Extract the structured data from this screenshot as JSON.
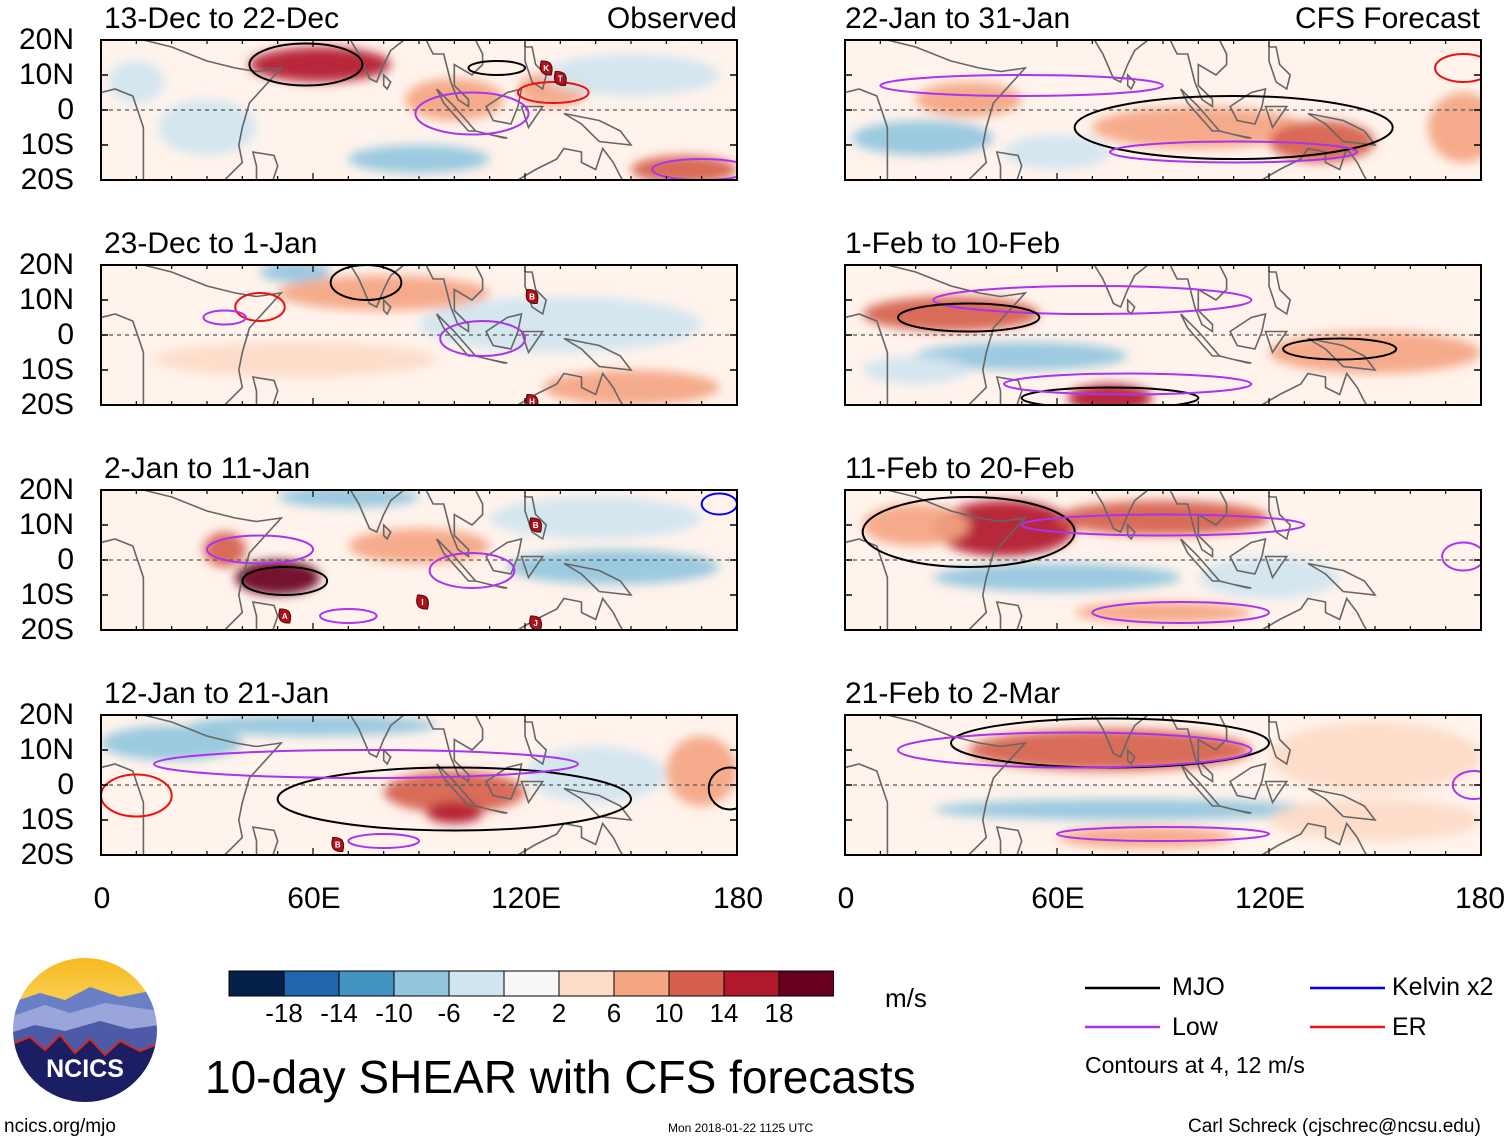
{
  "chart_data": {
    "type": "heatmap",
    "title": "10-day SHEAR with CFS forecasts",
    "variable": "vertical wind shear anomaly",
    "units": "m/s",
    "x_axis": {
      "ticks": [
        "0",
        "60E",
        "120E",
        "180"
      ],
      "range": [
        0,
        180
      ]
    },
    "y_axis": {
      "ticks": [
        "20N",
        "10N",
        "0",
        "10S",
        "20S"
      ],
      "range": [
        -20,
        20
      ]
    },
    "column_labels": {
      "observed": "Observed",
      "forecast": "CFS Forecast"
    },
    "panels": [
      {
        "id": "p1",
        "title": "13-Dec to 22-Dec",
        "source": "Observed",
        "col": 0,
        "row": 0,
        "blobs": [
          {
            "lon": 62,
            "lat": 13,
            "rx": 20,
            "ry": 5,
            "v": 16
          },
          {
            "lon": 100,
            "lat": 3,
            "rx": 14,
            "ry": 6,
            "v": 8
          },
          {
            "lon": 128,
            "lat": 6,
            "rx": 10,
            "ry": 5,
            "v": 9
          },
          {
            "lon": 165,
            "lat": -17,
            "rx": 15,
            "ry": 4,
            "v": 10
          },
          {
            "lon": 30,
            "lat": -5,
            "rx": 14,
            "ry": 8,
            "v": -6
          },
          {
            "lon": 90,
            "lat": -14,
            "rx": 20,
            "ry": 4,
            "v": -7
          },
          {
            "lon": 10,
            "lat": 8,
            "rx": 8,
            "ry": 6,
            "v": -5
          },
          {
            "lon": 150,
            "lat": 10,
            "rx": 25,
            "ry": 6,
            "v": -4
          }
        ],
        "contours": [
          {
            "type": "MJO",
            "lon": 58,
            "lat": 13,
            "rx": 16,
            "ry": 6
          },
          {
            "type": "MJO",
            "lon": 112,
            "lat": 12,
            "rx": 8,
            "ry": 2
          },
          {
            "type": "Low",
            "lon": 105,
            "lat": -1,
            "rx": 16,
            "ry": 6
          },
          {
            "type": "ER",
            "lon": 128,
            "lat": 5,
            "rx": 10,
            "ry": 3
          },
          {
            "type": "Low",
            "lon": 170,
            "lat": -17,
            "rx": 14,
            "ry": 3
          }
        ],
        "cyclones": [
          {
            "lon": 126,
            "lat": 12,
            "label": "K"
          },
          {
            "lon": 130,
            "lat": 9,
            "label": "T"
          }
        ]
      },
      {
        "id": "p2",
        "title": "22-Jan to 31-Jan",
        "source": "CFS Forecast",
        "col": 1,
        "row": 0,
        "blobs": [
          {
            "lon": 35,
            "lat": 3,
            "rx": 15,
            "ry": 5,
            "v": 8
          },
          {
            "lon": 100,
            "lat": -5,
            "rx": 30,
            "ry": 6,
            "v": 9
          },
          {
            "lon": 135,
            "lat": -9,
            "rx": 15,
            "ry": 6,
            "v": 11
          },
          {
            "lon": 175,
            "lat": -5,
            "rx": 10,
            "ry": 10,
            "v": 8
          },
          {
            "lon": 22,
            "lat": -8,
            "rx": 20,
            "ry": 5,
            "v": -9
          },
          {
            "lon": 60,
            "lat": -12,
            "rx": 15,
            "ry": 5,
            "v": -5
          }
        ],
        "contours": [
          {
            "type": "Low",
            "lon": 50,
            "lat": 7,
            "rx": 40,
            "ry": 3
          },
          {
            "type": "MJO",
            "lon": 110,
            "lat": -5,
            "rx": 45,
            "ry": 9
          },
          {
            "type": "Low",
            "lon": 110,
            "lat": -12,
            "rx": 35,
            "ry": 3
          },
          {
            "type": "ER",
            "lon": 175,
            "lat": 12,
            "rx": 8,
            "ry": 4
          }
        ],
        "cyclones": []
      },
      {
        "id": "p3",
        "title": "23-Dec to 1-Jan",
        "source": "Observed",
        "col": 0,
        "row": 1,
        "blobs": [
          {
            "lon": 80,
            "lat": 12,
            "rx": 30,
            "ry": 5,
            "v": 6
          },
          {
            "lon": 55,
            "lat": -7,
            "rx": 40,
            "ry": 5,
            "v": 4
          },
          {
            "lon": 150,
            "lat": -15,
            "rx": 25,
            "ry": 5,
            "v": 6
          },
          {
            "lon": 55,
            "lat": 18,
            "rx": 10,
            "ry": 3,
            "v": -10
          },
          {
            "lon": 130,
            "lat": 3,
            "rx": 40,
            "ry": 8,
            "v": -3
          }
        ],
        "contours": [
          {
            "type": "MJO",
            "lon": 75,
            "lat": 15,
            "rx": 10,
            "ry": 5
          },
          {
            "type": "Low",
            "lon": 108,
            "lat": -1,
            "rx": 12,
            "ry": 5
          },
          {
            "type": "ER",
            "lon": 45,
            "lat": 8,
            "rx": 7,
            "ry": 4
          },
          {
            "type": "Low",
            "lon": 35,
            "lat": 5,
            "rx": 6,
            "ry": 2
          }
        ],
        "cyclones": [
          {
            "lon": 122,
            "lat": 11,
            "label": "B"
          },
          {
            "lon": 122,
            "lat": -19,
            "label": "H"
          }
        ]
      },
      {
        "id": "p4",
        "title": "1-Feb to 10-Feb",
        "source": "CFS Forecast",
        "col": 1,
        "row": 1,
        "blobs": [
          {
            "lon": 30,
            "lat": 6,
            "rx": 25,
            "ry": 5,
            "v": 10
          },
          {
            "lon": 75,
            "lat": -18,
            "rx": 12,
            "ry": 4,
            "v": 14
          },
          {
            "lon": 150,
            "lat": -5,
            "rx": 30,
            "ry": 6,
            "v": 7
          },
          {
            "lon": 50,
            "lat": -6,
            "rx": 30,
            "ry": 4,
            "v": -9
          },
          {
            "lon": 20,
            "lat": -10,
            "rx": 15,
            "ry": 4,
            "v": -6
          }
        ],
        "contours": [
          {
            "type": "Low",
            "lon": 70,
            "lat": 10,
            "rx": 45,
            "ry": 4
          },
          {
            "type": "MJO",
            "lon": 35,
            "lat": 5,
            "rx": 20,
            "ry": 4
          },
          {
            "type": "MJO",
            "lon": 140,
            "lat": -4,
            "rx": 16,
            "ry": 3
          },
          {
            "type": "MJO",
            "lon": 75,
            "lat": -18,
            "rx": 25,
            "ry": 3
          },
          {
            "type": "Low",
            "lon": 80,
            "lat": -14,
            "rx": 35,
            "ry": 3
          }
        ],
        "cyclones": []
      },
      {
        "id": "p5",
        "title": "2-Jan to 11-Jan",
        "source": "Observed",
        "col": 0,
        "row": 2,
        "blobs": [
          {
            "lon": 50,
            "lat": -5,
            "rx": 12,
            "ry": 5,
            "v": 18
          },
          {
            "lon": 35,
            "lat": 3,
            "rx": 6,
            "ry": 5,
            "v": 12
          },
          {
            "lon": 90,
            "lat": 4,
            "rx": 20,
            "ry": 5,
            "v": 8
          },
          {
            "lon": 70,
            "lat": 18,
            "rx": 20,
            "ry": 3,
            "v": -10
          },
          {
            "lon": 145,
            "lat": -2,
            "rx": 30,
            "ry": 5,
            "v": -7
          },
          {
            "lon": 140,
            "lat": 12,
            "rx": 30,
            "ry": 6,
            "v": -3
          }
        ],
        "contours": [
          {
            "type": "MJO",
            "lon": 52,
            "lat": -6,
            "rx": 12,
            "ry": 4
          },
          {
            "type": "Low",
            "lon": 45,
            "lat": 3,
            "rx": 15,
            "ry": 4
          },
          {
            "type": "Low",
            "lon": 105,
            "lat": -3,
            "rx": 12,
            "ry": 5
          },
          {
            "type": "Low",
            "lon": 70,
            "lat": -16,
            "rx": 8,
            "ry": 2
          },
          {
            "type": "Kelvin x2",
            "lon": 175,
            "lat": 16,
            "rx": 5,
            "ry": 3
          }
        ],
        "cyclones": [
          {
            "lon": 52,
            "lat": -16,
            "label": "A"
          },
          {
            "lon": 91,
            "lat": -12,
            "label": "I"
          },
          {
            "lon": 123,
            "lat": 10,
            "label": "B"
          },
          {
            "lon": 123,
            "lat": -18,
            "label": "J"
          }
        ]
      },
      {
        "id": "p6",
        "title": "11-Feb to 20-Feb",
        "source": "CFS Forecast",
        "col": 1,
        "row": 2,
        "blobs": [
          {
            "lon": 45,
            "lat": 9,
            "rx": 20,
            "ry": 8,
            "v": 14
          },
          {
            "lon": 90,
            "lat": 12,
            "rx": 30,
            "ry": 5,
            "v": 10
          },
          {
            "lon": 20,
            "lat": 10,
            "rx": 15,
            "ry": 6,
            "v": 7
          },
          {
            "lon": 60,
            "lat": -5,
            "rx": 35,
            "ry": 4,
            "v": -7
          },
          {
            "lon": 120,
            "lat": -5,
            "rx": 20,
            "ry": 6,
            "v": -5
          },
          {
            "lon": 90,
            "lat": -15,
            "rx": 25,
            "ry": 3,
            "v": 6
          }
        ],
        "contours": [
          {
            "type": "MJO",
            "lon": 35,
            "lat": 8,
            "rx": 30,
            "ry": 10
          },
          {
            "type": "Low",
            "lon": 90,
            "lat": 10,
            "rx": 40,
            "ry": 3
          },
          {
            "type": "Low",
            "lon": 95,
            "lat": -15,
            "rx": 25,
            "ry": 3
          },
          {
            "type": "Low",
            "lon": 175,
            "lat": 1,
            "rx": 6,
            "ry": 4
          }
        ],
        "cyclones": []
      },
      {
        "id": "p7",
        "title": "12-Jan to 21-Jan",
        "source": "Observed",
        "col": 0,
        "row": 3,
        "blobs": [
          {
            "lon": 100,
            "lat": -2,
            "rx": 20,
            "ry": 6,
            "v": 10
          },
          {
            "lon": 100,
            "lat": -8,
            "rx": 8,
            "ry": 3,
            "v": 16
          },
          {
            "lon": 170,
            "lat": 4,
            "rx": 10,
            "ry": 10,
            "v": 6
          },
          {
            "lon": 60,
            "lat": 17,
            "rx": 35,
            "ry": 3,
            "v": -10
          },
          {
            "lon": 20,
            "lat": 12,
            "rx": 20,
            "ry": 5,
            "v": -7
          },
          {
            "lon": 140,
            "lat": 3,
            "rx": 20,
            "ry": 8,
            "v": -4
          }
        ],
        "contours": [
          {
            "type": "MJO",
            "lon": 100,
            "lat": -4,
            "rx": 50,
            "ry": 9
          },
          {
            "type": "Low",
            "lon": 75,
            "lat": 6,
            "rx": 60,
            "ry": 4
          },
          {
            "type": "Low",
            "lon": 80,
            "lat": -16,
            "rx": 10,
            "ry": 2
          },
          {
            "type": "ER",
            "lon": 10,
            "lat": -3,
            "rx": 10,
            "ry": 6
          },
          {
            "type": "MJO",
            "lon": 178,
            "lat": -1,
            "rx": 6,
            "ry": 6
          }
        ],
        "cyclones": [
          {
            "lon": 67,
            "lat": -17,
            "label": "B"
          }
        ]
      },
      {
        "id": "p8",
        "title": "21-Feb to 2-Mar",
        "source": "CFS Forecast",
        "col": 1,
        "row": 3,
        "blobs": [
          {
            "lon": 75,
            "lat": 10,
            "rx": 40,
            "ry": 6,
            "v": 12
          },
          {
            "lon": 150,
            "lat": 8,
            "rx": 30,
            "ry": 10,
            "v": 4
          },
          {
            "lon": 80,
            "lat": -7,
            "rx": 55,
            "ry": 3,
            "v": -7
          },
          {
            "lon": 85,
            "lat": -15,
            "rx": 25,
            "ry": 3,
            "v": 6
          },
          {
            "lon": 150,
            "lat": -10,
            "rx": 30,
            "ry": 6,
            "v": 3
          }
        ],
        "contours": [
          {
            "type": "MJO",
            "lon": 75,
            "lat": 12,
            "rx": 45,
            "ry": 7
          },
          {
            "type": "Low",
            "lon": 65,
            "lat": 10,
            "rx": 50,
            "ry": 5
          },
          {
            "type": "Low",
            "lon": 90,
            "lat": -14,
            "rx": 30,
            "ry": 2
          },
          {
            "type": "Low",
            "lon": 178,
            "lat": 0,
            "rx": 6,
            "ry": 4
          }
        ],
        "cyclones": []
      }
    ],
    "colorbar": {
      "labels": [
        "-18",
        "-14",
        "-10",
        "-6",
        "-2",
        "2",
        "6",
        "10",
        "14",
        "18"
      ],
      "colors": [
        "#05214a",
        "#2166ac",
        "#4393c3",
        "#92c5de",
        "#d1e5f0",
        "#f7f7f7",
        "#fddbc7",
        "#f4a582",
        "#d6604d",
        "#b2182b",
        "#67001f"
      ],
      "units": "m/s"
    },
    "legend": [
      {
        "label": "MJO",
        "color": "#000000"
      },
      {
        "label": "Kelvin x2",
        "color": "#0000ff"
      },
      {
        "label": "Low",
        "color": "#aa33ee"
      },
      {
        "label": "ER",
        "color": "#ee1111"
      }
    ],
    "contour_note": "Contours at 4, 12 m/s"
  },
  "footer": {
    "logo_text": "NCICS",
    "url": "ncics.org/mjo",
    "timestamp": "Mon 2018-01-22 1125 UTC",
    "credit": "Carl Schreck (cjschrec@ncsu.edu)"
  }
}
